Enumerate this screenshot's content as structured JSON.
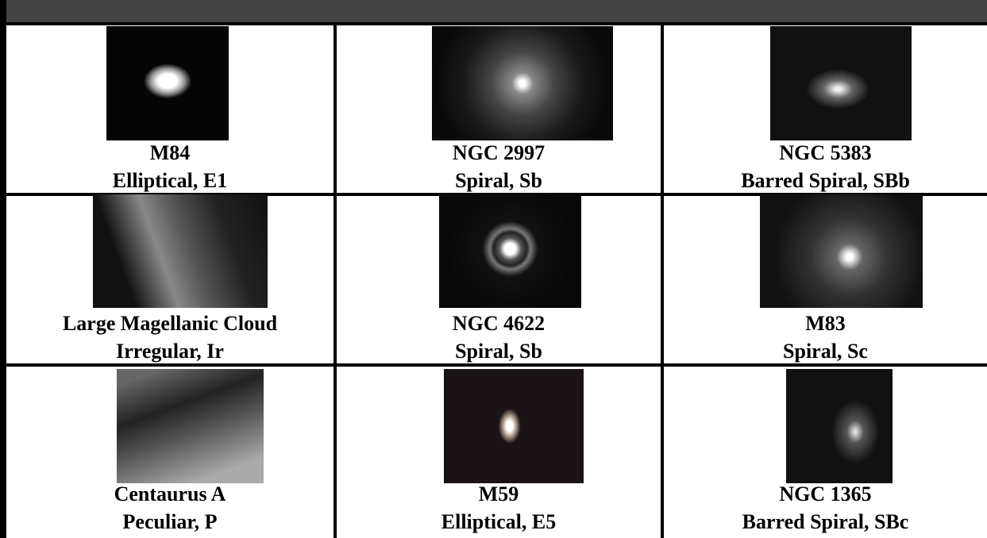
{
  "table": {
    "rows": [
      [
        {
          "name": "M84",
          "type": "Elliptical, E1"
        },
        {
          "name": "NGC 2997",
          "type": "Spiral, Sb"
        },
        {
          "name": "NGC 5383",
          "type": "Barred Spiral, SBb"
        }
      ],
      [
        {
          "name": "Large Magellanic Cloud",
          "type": "Irregular, Ir"
        },
        {
          "name": "NGC 4622",
          "type": "Spiral, Sb"
        },
        {
          "name": "M83",
          "type": "Spiral, Sc"
        }
      ],
      [
        {
          "name": "Centaurus A",
          "type": "Peculiar, P"
        },
        {
          "name": "M59",
          "type": "Elliptical, E5"
        },
        {
          "name": "NGC 1365",
          "type": "Barred Spiral, SBc"
        }
      ]
    ]
  }
}
